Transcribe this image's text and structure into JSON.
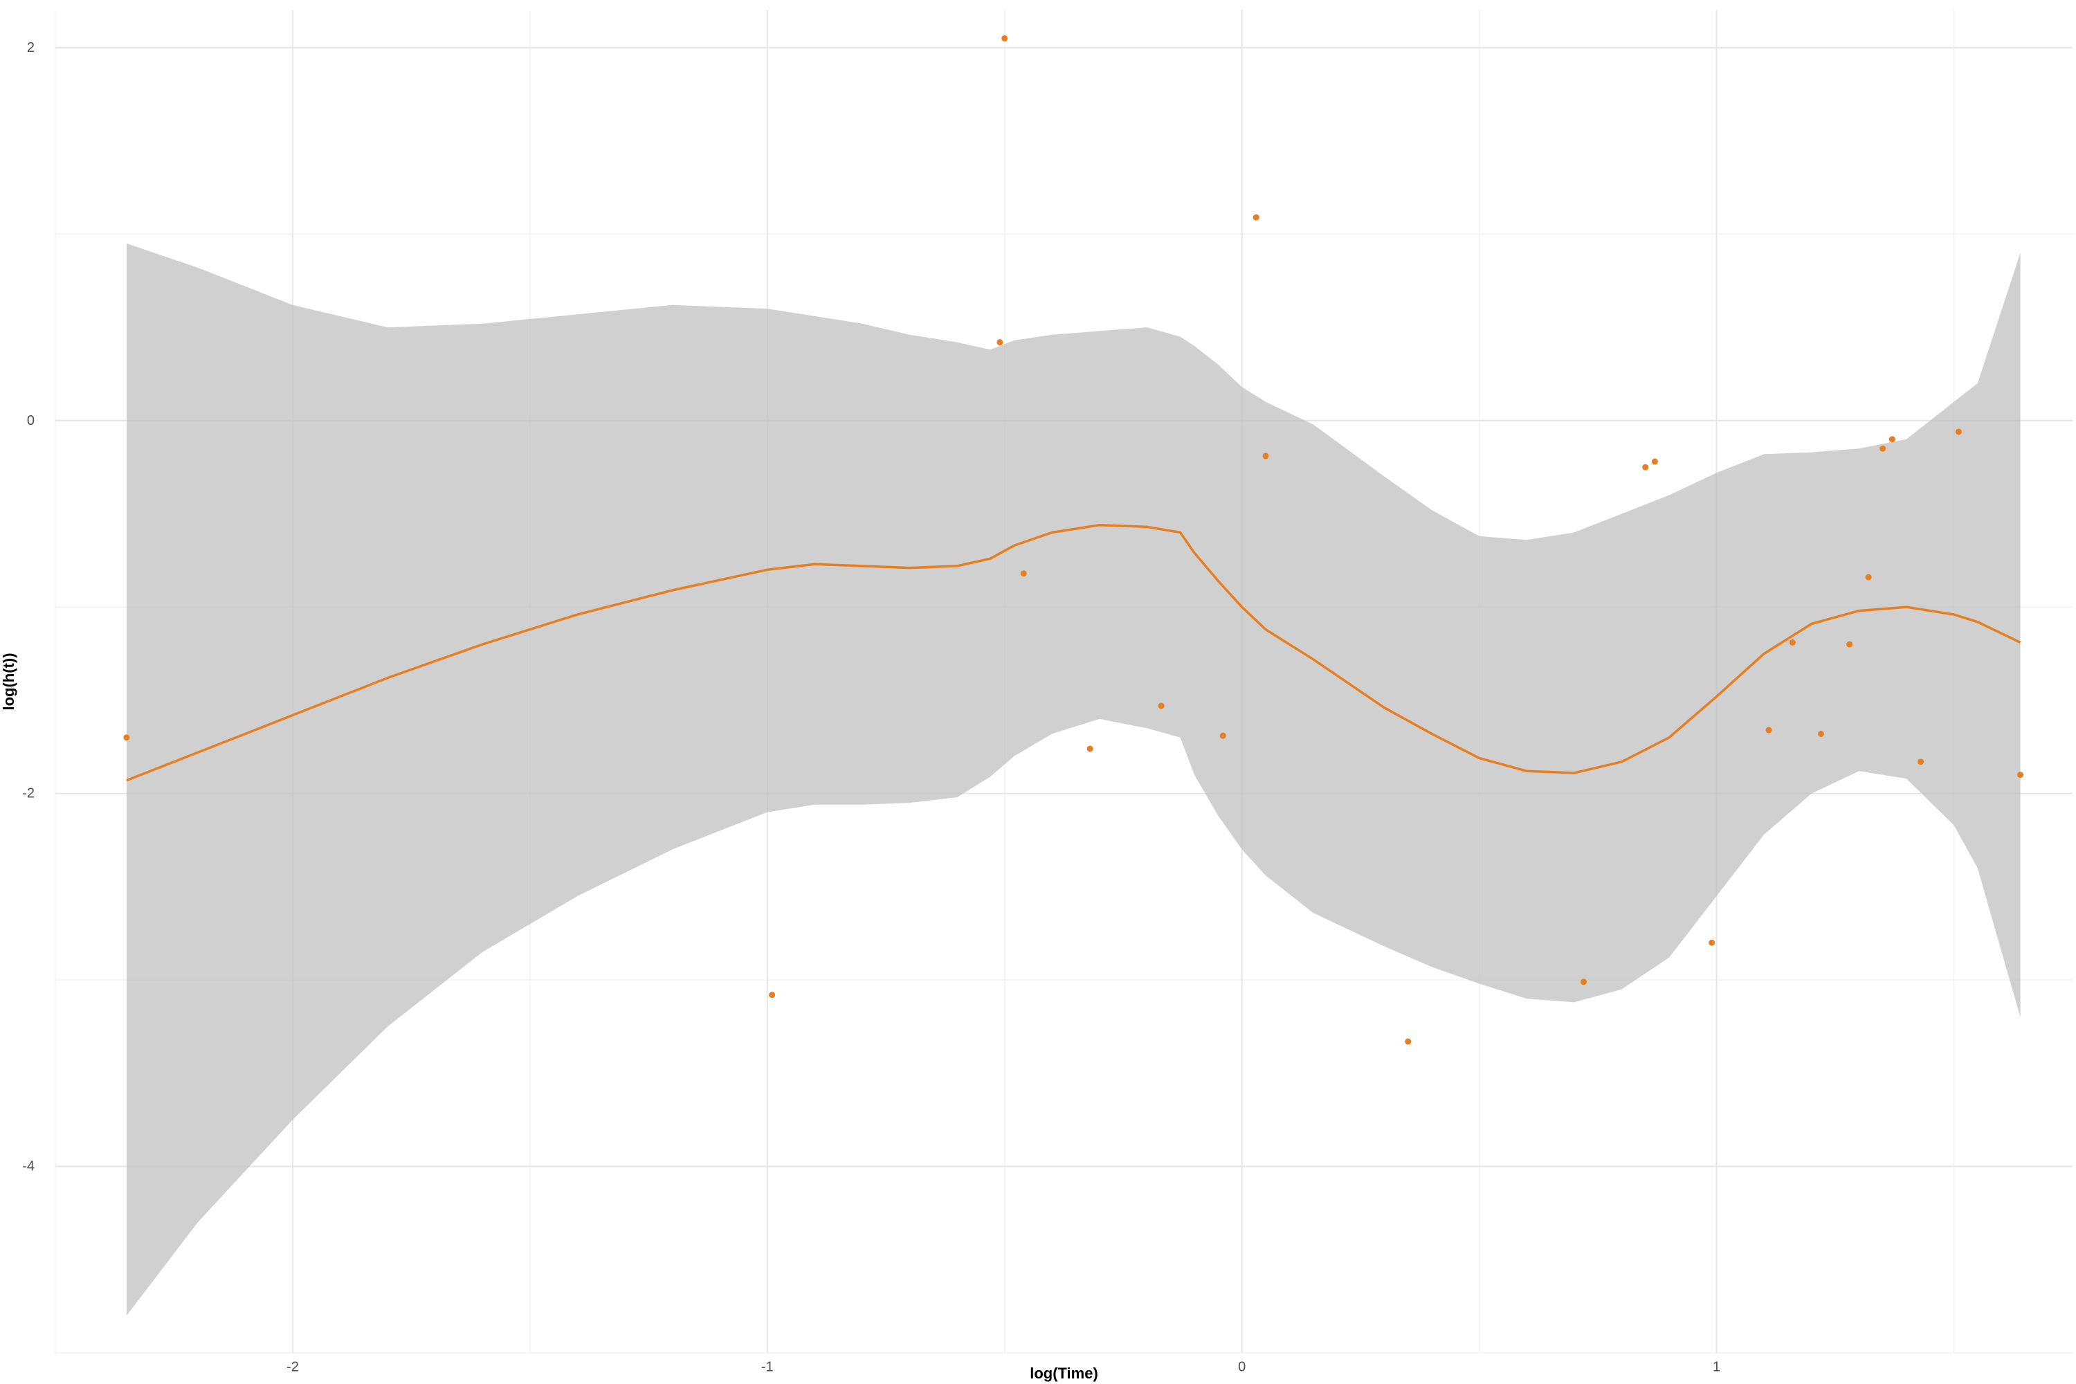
{
  "chart_data": {
    "type": "scatter",
    "xlabel": "log(Time)",
    "ylabel": "log(h(t))",
    "xlim": [
      -2.5,
      1.75
    ],
    "ylim": [
      -5.0,
      2.2
    ],
    "x_ticks": [
      -2,
      -1,
      0,
      1
    ],
    "y_ticks": [
      -4,
      -2,
      0,
      2
    ],
    "grid": true,
    "colors": {
      "points": "#E67E22",
      "smooth_line": "#E67E22",
      "ribbon": "#BEBEBE",
      "grid_major": "#E6E6E6",
      "grid_minor": "#F2F2F2"
    },
    "points": [
      {
        "x": -2.35,
        "y": -1.7
      },
      {
        "x": -0.99,
        "y": -3.08
      },
      {
        "x": -0.51,
        "y": 0.42
      },
      {
        "x": -0.5,
        "y": 2.05
      },
      {
        "x": -0.46,
        "y": -0.82
      },
      {
        "x": -0.32,
        "y": -1.76
      },
      {
        "x": -0.17,
        "y": -1.53
      },
      {
        "x": -0.04,
        "y": -1.69
      },
      {
        "x": 0.03,
        "y": 1.09
      },
      {
        "x": 0.05,
        "y": -0.19
      },
      {
        "x": 0.35,
        "y": -3.33
      },
      {
        "x": 0.72,
        "y": -3.01
      },
      {
        "x": 0.85,
        "y": -0.25
      },
      {
        "x": 0.87,
        "y": -0.22
      },
      {
        "x": 0.99,
        "y": -2.8
      },
      {
        "x": 1.11,
        "y": -1.66
      },
      {
        "x": 1.16,
        "y": -1.19
      },
      {
        "x": 1.22,
        "y": -1.68
      },
      {
        "x": 1.28,
        "y": -1.2
      },
      {
        "x": 1.32,
        "y": -0.84
      },
      {
        "x": 1.35,
        "y": -0.15
      },
      {
        "x": 1.37,
        "y": -0.1
      },
      {
        "x": 1.43,
        "y": -1.83
      },
      {
        "x": 1.51,
        "y": -0.06
      },
      {
        "x": 1.64,
        "y": -1.9
      }
    ],
    "smooth": {
      "x": [
        -2.35,
        -2.2,
        -2.0,
        -1.8,
        -1.6,
        -1.4,
        -1.2,
        -1.0,
        -0.9,
        -0.8,
        -0.7,
        -0.6,
        -0.53,
        -0.48,
        -0.4,
        -0.3,
        -0.2,
        -0.13,
        -0.1,
        -0.05,
        0.0,
        0.05,
        0.15,
        0.3,
        0.4,
        0.5,
        0.6,
        0.7,
        0.8,
        0.9,
        1.0,
        1.1,
        1.2,
        1.3,
        1.4,
        1.5,
        1.55,
        1.64
      ],
      "y": [
        -1.93,
        -1.78,
        -1.58,
        -1.38,
        -1.2,
        -1.04,
        -0.91,
        -0.8,
        -0.77,
        -0.78,
        -0.79,
        -0.78,
        -0.74,
        -0.67,
        -0.6,
        -0.56,
        -0.57,
        -0.6,
        -0.71,
        -0.86,
        -1.0,
        -1.12,
        -1.28,
        -1.54,
        -1.68,
        -1.81,
        -1.88,
        -1.89,
        -1.83,
        -1.7,
        -1.48,
        -1.25,
        -1.09,
        -1.02,
        -1.0,
        -1.04,
        -1.08,
        -1.19
      ],
      "lower": [
        -4.8,
        -4.3,
        -3.75,
        -3.25,
        -2.85,
        -2.55,
        -2.3,
        -2.1,
        -2.06,
        -2.06,
        -2.05,
        -2.02,
        -1.91,
        -1.8,
        -1.68,
        -1.6,
        -1.65,
        -1.7,
        -1.9,
        -2.12,
        -2.3,
        -2.44,
        -2.64,
        -2.82,
        -2.93,
        -3.02,
        -3.1,
        -3.12,
        -3.05,
        -2.88,
        -2.55,
        -2.22,
        -2.0,
        -1.88,
        -1.92,
        -2.17,
        -2.4,
        -3.2
      ],
      "upper": [
        0.95,
        0.82,
        0.62,
        0.5,
        0.52,
        0.57,
        0.62,
        0.6,
        0.56,
        0.52,
        0.46,
        0.42,
        0.38,
        0.43,
        0.46,
        0.48,
        0.5,
        0.45,
        0.4,
        0.3,
        0.18,
        0.1,
        -0.02,
        -0.3,
        -0.48,
        -0.62,
        -0.64,
        -0.6,
        -0.5,
        -0.4,
        -0.28,
        -0.18,
        -0.17,
        -0.15,
        -0.1,
        0.1,
        0.2,
        0.9
      ]
    }
  }
}
